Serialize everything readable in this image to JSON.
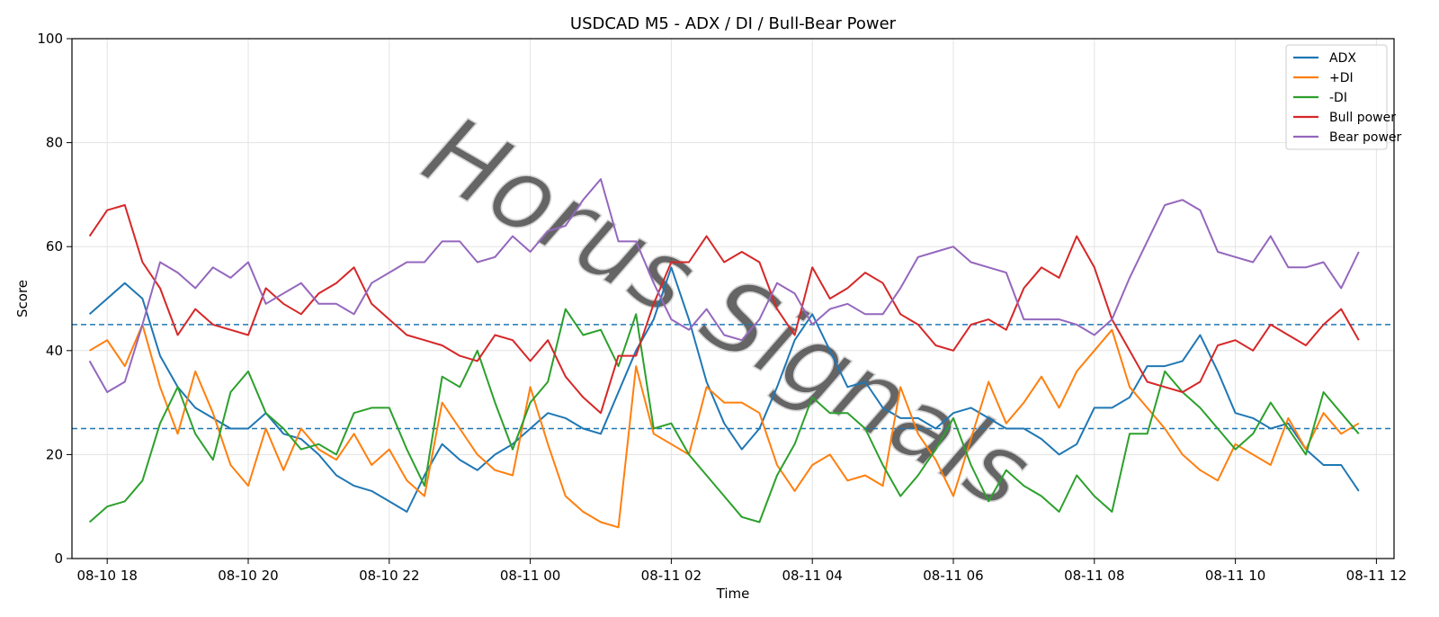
{
  "chart_data": {
    "type": "line",
    "title": "USDCAD M5 - ADX / DI / Bull-Bear Power",
    "xlabel": "Time",
    "ylabel": "Score",
    "ylim": [
      0,
      100
    ],
    "xlim": [
      "08-10 17:30",
      "08-11 12:15"
    ],
    "xticks": [
      "08-10 18",
      "08-10 20",
      "08-10 22",
      "08-11 00",
      "08-11 02",
      "08-11 04",
      "08-11 06",
      "08-11 08",
      "08-11 10",
      "08-11 12"
    ],
    "yticks": [
      0,
      20,
      40,
      60,
      80,
      100
    ],
    "grid": true,
    "legend_position": "top-right",
    "x": [
      "08-10 17:45",
      "08-10 18:00",
      "08-10 18:15",
      "08-10 18:30",
      "08-10 18:45",
      "08-10 19:00",
      "08-10 19:15",
      "08-10 19:30",
      "08-10 19:45",
      "08-10 20:00",
      "08-10 20:15",
      "08-10 20:30",
      "08-10 20:45",
      "08-10 21:00",
      "08-10 21:15",
      "08-10 21:30",
      "08-10 21:45",
      "08-10 22:00",
      "08-10 22:15",
      "08-10 22:30",
      "08-10 22:45",
      "08-10 23:00",
      "08-10 23:15",
      "08-10 23:30",
      "08-10 23:45",
      "08-11 00:00",
      "08-11 00:15",
      "08-11 00:30",
      "08-11 00:45",
      "08-11 01:00",
      "08-11 01:15",
      "08-11 01:30",
      "08-11 01:45",
      "08-11 02:00",
      "08-11 02:15",
      "08-11 02:30",
      "08-11 02:45",
      "08-11 03:00",
      "08-11 03:15",
      "08-11 03:30",
      "08-11 03:45",
      "08-11 04:00",
      "08-11 04:15",
      "08-11 04:30",
      "08-11 04:45",
      "08-11 05:00",
      "08-11 05:15",
      "08-11 05:30",
      "08-11 05:45",
      "08-11 06:00",
      "08-11 06:15",
      "08-11 06:30",
      "08-11 06:45",
      "08-11 07:00",
      "08-11 07:15",
      "08-11 07:30",
      "08-11 07:45",
      "08-11 08:00",
      "08-11 08:15",
      "08-11 08:30",
      "08-11 08:45",
      "08-11 09:00",
      "08-11 09:15",
      "08-11 09:30",
      "08-11 09:45",
      "08-11 10:00",
      "08-11 10:15",
      "08-11 10:30",
      "08-11 10:45",
      "08-11 11:00",
      "08-11 11:15",
      "08-11 11:30",
      "08-11 11:45"
    ],
    "series": [
      {
        "name": "ADX",
        "color": "#1f77b4",
        "values": [
          47,
          50,
          53,
          50,
          39,
          33,
          29,
          27,
          25,
          25,
          28,
          24,
          23,
          20,
          16,
          14,
          13,
          11,
          9,
          16,
          22,
          19,
          17,
          20,
          22,
          25,
          28,
          27,
          25,
          24,
          32,
          40,
          46,
          56,
          46,
          34,
          26,
          21,
          25,
          33,
          42,
          47,
          40,
          33,
          34,
          29,
          27,
          27,
          25,
          28,
          29,
          27,
          25,
          25,
          23,
          20,
          22,
          29,
          29,
          31,
          37,
          37,
          38,
          43,
          36,
          28,
          27,
          25,
          26,
          21,
          18,
          18,
          13
        ]
      },
      {
        "name": "+DI",
        "color": "#ff7f0e",
        "values": [
          40,
          42,
          37,
          45,
          33,
          24,
          36,
          28,
          18,
          14,
          25,
          17,
          25,
          21,
          19,
          24,
          18,
          21,
          15,
          12,
          30,
          25,
          20,
          17,
          16,
          33,
          22,
          12,
          9,
          7,
          6,
          37,
          24,
          22,
          20,
          33,
          30,
          30,
          28,
          18,
          13,
          18,
          20,
          15,
          16,
          14,
          33,
          24,
          19,
          12,
          23,
          34,
          26,
          30,
          35,
          29,
          36,
          40,
          44,
          33,
          29,
          25,
          20,
          17,
          15,
          22,
          20,
          18,
          27,
          21,
          28,
          24,
          26
        ]
      },
      {
        "name": "-DI",
        "color": "#2ca02c",
        "values": [
          7,
          10,
          11,
          15,
          26,
          33,
          24,
          19,
          32,
          36,
          28,
          25,
          21,
          22,
          20,
          28,
          29,
          29,
          21,
          14,
          35,
          33,
          40,
          30,
          21,
          30,
          34,
          48,
          43,
          44,
          37,
          47,
          25,
          26,
          20,
          16,
          12,
          8,
          7,
          16,
          22,
          31,
          28,
          28,
          25,
          18,
          12,
          16,
          21,
          27,
          18,
          11,
          17,
          14,
          12,
          9,
          16,
          12,
          9,
          24,
          24,
          36,
          32,
          29,
          25,
          21,
          24,
          30,
          25,
          20,
          32,
          28,
          24
        ]
      },
      {
        "name": "Bull power",
        "color": "#d62728",
        "values": [
          62,
          67,
          68,
          57,
          52,
          43,
          48,
          45,
          44,
          43,
          52,
          49,
          47,
          51,
          53,
          56,
          49,
          46,
          43,
          42,
          41,
          39,
          38,
          43,
          42,
          38,
          42,
          35,
          31,
          28,
          39,
          39,
          49,
          57,
          57,
          62,
          57,
          59,
          57,
          48,
          43,
          56,
          50,
          52,
          55,
          53,
          47,
          45,
          41,
          40,
          45,
          46,
          44,
          52,
          56,
          54,
          62,
          56,
          46,
          40,
          34,
          33,
          32,
          34,
          41,
          42,
          40,
          45,
          43,
          41,
          45,
          48,
          42
        ]
      },
      {
        "name": "Bear power",
        "color": "#9467bd",
        "values": [
          38,
          32,
          34,
          45,
          57,
          55,
          52,
          56,
          54,
          57,
          49,
          51,
          53,
          49,
          49,
          47,
          53,
          55,
          57,
          57,
          61,
          61,
          57,
          58,
          62,
          59,
          63,
          64,
          69,
          73,
          61,
          61,
          53,
          46,
          44,
          48,
          43,
          42,
          46,
          53,
          51,
          45,
          48,
          49,
          47,
          47,
          52,
          58,
          59,
          60,
          57,
          56,
          55,
          46,
          46,
          46,
          45,
          43,
          46,
          54,
          61,
          68,
          69,
          67,
          59,
          58,
          57,
          62,
          56,
          56,
          57,
          52,
          59
        ]
      }
    ],
    "hlines": [
      {
        "y": 45,
        "color": "#1f77b4",
        "style": "dashed"
      },
      {
        "y": 25,
        "color": "#1f77b4",
        "style": "dashed"
      }
    ],
    "watermark": "Horus Signals"
  }
}
